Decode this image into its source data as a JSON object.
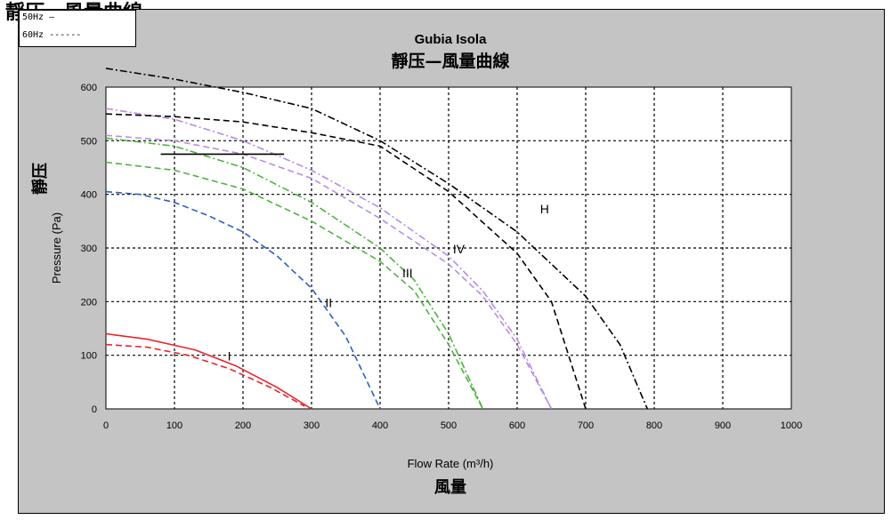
{
  "page_caption": "靜压—風量曲線",
  "colors": {
    "frame_bg": "#c4c4c4",
    "plot_bg": "#ffffff",
    "grid": "#000000",
    "red": "#e8242b",
    "blue": "#2e5fbd",
    "green": "#4cb43c",
    "lavender": "#b88de0",
    "black": "#000000"
  },
  "legend": [
    {
      "name": "50Hz",
      "sample": "—"
    },
    {
      "name": "60Hz",
      "sample": "------"
    }
  ],
  "chart_data": {
    "type": "line",
    "title": "Gubia Isola",
    "subtitle": "靜压—風量曲線",
    "xlabel": "Flow Rate (m³/h)",
    "xlabel_cn": "風量",
    "ylabel": "Pressure (Pa)",
    "ylabel_cn": "靜压",
    "xlim": [
      0,
      1000
    ],
    "ylim": [
      0,
      600
    ],
    "x_ticks": [
      "0",
      "100",
      "200",
      "300",
      "400",
      "500",
      "600",
      "700",
      "800",
      "900",
      "1000"
    ],
    "y_ticks": [
      "0",
      "100",
      "200",
      "300",
      "400",
      "500",
      "600"
    ],
    "grid": true,
    "annotations": [
      {
        "text": "I",
        "x": 180,
        "y": 90
      },
      {
        "text": "II",
        "x": 325,
        "y": 190
      },
      {
        "text": "III",
        "x": 440,
        "y": 245
      },
      {
        "text": "IV",
        "x": 515,
        "y": 290
      },
      {
        "text": "H",
        "x": 640,
        "y": 365
      }
    ],
    "series": [
      {
        "color": "#e8242b",
        "dash": "solid",
        "x": [
          0,
          60,
          130,
          190,
          250,
          300
        ],
        "y": [
          140,
          130,
          110,
          80,
          40,
          0
        ]
      },
      {
        "color": "#e8242b",
        "dash": "dash",
        "x": [
          0,
          60,
          120,
          180,
          240,
          290
        ],
        "y": [
          120,
          115,
          100,
          75,
          40,
          5
        ]
      },
      {
        "color": "#2e5fbd",
        "dash": "dash",
        "x": [
          0,
          50,
          100,
          150,
          200,
          250,
          300,
          350,
          400
        ],
        "y": [
          405,
          400,
          385,
          360,
          330,
          285,
          225,
          135,
          0
        ]
      },
      {
        "color": "#4cb43c",
        "dash": "dashdot",
        "x": [
          0,
          100,
          200,
          300,
          400,
          450,
          500,
          550
        ],
        "y": [
          505,
          490,
          450,
          385,
          300,
          240,
          140,
          0
        ]
      },
      {
        "color": "#4cb43c",
        "dash": "dash",
        "x": [
          0,
          100,
          200,
          300,
          400,
          450,
          500,
          550
        ],
        "y": [
          460,
          445,
          410,
          350,
          275,
          220,
          120,
          0
        ]
      },
      {
        "color": "#b88de0",
        "dash": "dashdot",
        "x": [
          0,
          100,
          200,
          300,
          400,
          500,
          550,
          600,
          650
        ],
        "y": [
          560,
          540,
          500,
          445,
          375,
          285,
          220,
          130,
          0
        ]
      },
      {
        "color": "#b88de0",
        "dash": "dash",
        "x": [
          0,
          100,
          200,
          300,
          400,
          500,
          550,
          600,
          650
        ],
        "y": [
          510,
          500,
          475,
          430,
          355,
          270,
          210,
          120,
          0
        ]
      },
      {
        "color": "#000000",
        "dash": "dashdot",
        "x": [
          0,
          100,
          200,
          300,
          400,
          500,
          550,
          600,
          700,
          750,
          790
        ],
        "y": [
          635,
          615,
          590,
          560,
          500,
          420,
          375,
          330,
          210,
          120,
          0
        ]
      },
      {
        "color": "#000000",
        "dash": "dash",
        "x": [
          0,
          100,
          200,
          300,
          400,
          500,
          600,
          650,
          700
        ],
        "y": [
          550,
          545,
          535,
          515,
          490,
          405,
          290,
          200,
          0
        ]
      },
      {
        "color": "#000000",
        "dash": "solid",
        "x": [
          80,
          260
        ],
        "y": [
          475,
          475
        ]
      }
    ]
  }
}
